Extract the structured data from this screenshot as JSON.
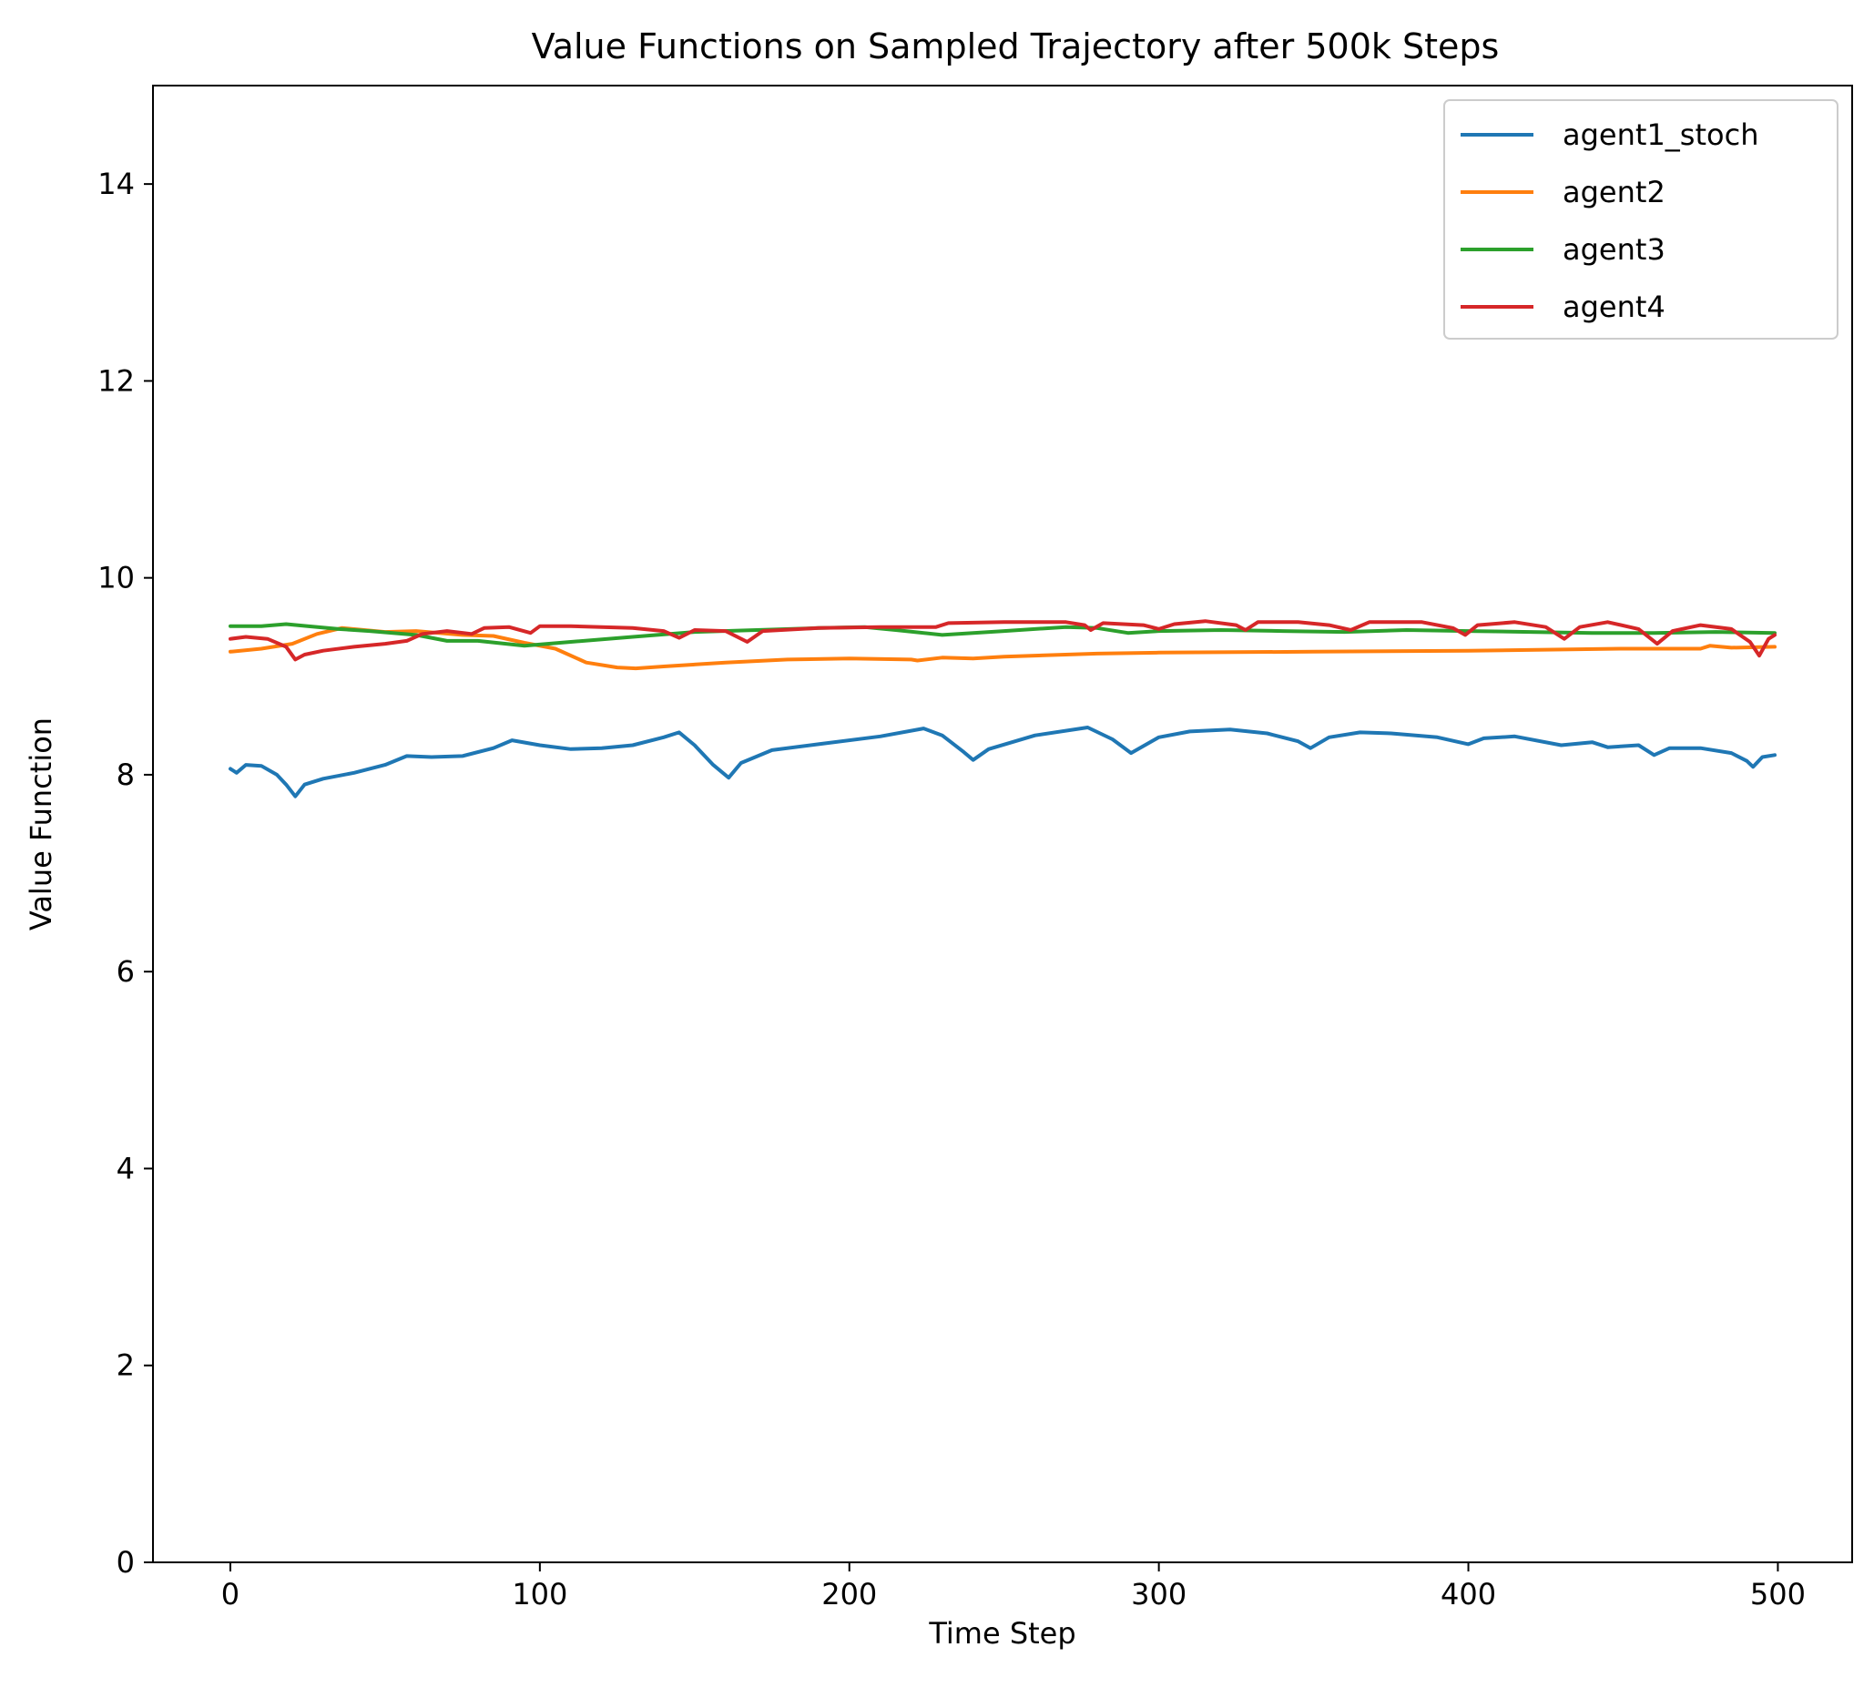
{
  "chart_data": {
    "type": "line",
    "title": "Value Functions on Sampled Trajectory after 500k Steps",
    "xlabel": "Time Step",
    "ylabel": "Value Function",
    "xlim": [
      -25,
      524
    ],
    "ylim": [
      0,
      15
    ],
    "xticks": [
      0,
      100,
      200,
      300,
      400,
      500
    ],
    "yticks": [
      0,
      2,
      4,
      6,
      8,
      10,
      12,
      14
    ],
    "xtick_labels": [
      "0",
      "100",
      "200",
      "300",
      "400",
      "500"
    ],
    "ytick_labels": [
      "0",
      "2",
      "4",
      "6",
      "8",
      "10",
      "12",
      "14"
    ],
    "grid": false,
    "legend_position": "top-right",
    "series": [
      {
        "name": "agent1_stoch",
        "color": "#1f77b4",
        "points": [
          [
            0,
            8.06
          ],
          [
            2,
            8.02
          ],
          [
            5,
            8.1
          ],
          [
            10,
            8.09
          ],
          [
            15,
            8.0
          ],
          [
            18,
            7.9
          ],
          [
            21,
            7.78
          ],
          [
            24,
            7.9
          ],
          [
            30,
            7.96
          ],
          [
            40,
            8.02
          ],
          [
            50,
            8.1
          ],
          [
            57,
            8.19
          ],
          [
            65,
            8.18
          ],
          [
            75,
            8.19
          ],
          [
            85,
            8.27
          ],
          [
            91,
            8.35
          ],
          [
            100,
            8.3
          ],
          [
            110,
            8.26
          ],
          [
            120,
            8.27
          ],
          [
            130,
            8.3
          ],
          [
            140,
            8.38
          ],
          [
            145,
            8.43
          ],
          [
            150,
            8.3
          ],
          [
            156,
            8.1
          ],
          [
            161,
            7.97
          ],
          [
            165,
            8.12
          ],
          [
            175,
            8.25
          ],
          [
            190,
            8.31
          ],
          [
            210,
            8.39
          ],
          [
            224,
            8.47
          ],
          [
            230,
            8.4
          ],
          [
            237,
            8.23
          ],
          [
            240,
            8.15
          ],
          [
            245,
            8.26
          ],
          [
            260,
            8.4
          ],
          [
            277,
            8.48
          ],
          [
            285,
            8.36
          ],
          [
            291,
            8.22
          ],
          [
            300,
            8.38
          ],
          [
            310,
            8.44
          ],
          [
            323,
            8.46
          ],
          [
            335,
            8.42
          ],
          [
            345,
            8.34
          ],
          [
            349,
            8.27
          ],
          [
            355,
            8.38
          ],
          [
            365,
            8.43
          ],
          [
            375,
            8.42
          ],
          [
            390,
            8.38
          ],
          [
            400,
            8.31
          ],
          [
            405,
            8.37
          ],
          [
            415,
            8.39
          ],
          [
            430,
            8.3
          ],
          [
            440,
            8.33
          ],
          [
            445,
            8.28
          ],
          [
            455,
            8.3
          ],
          [
            460,
            8.2
          ],
          [
            465,
            8.27
          ],
          [
            475,
            8.27
          ],
          [
            485,
            8.22
          ],
          [
            490,
            8.14
          ],
          [
            492,
            8.08
          ],
          [
            495,
            8.18
          ],
          [
            499,
            8.2
          ]
        ]
      },
      {
        "name": "agent2",
        "color": "#ff7f0e",
        "points": [
          [
            0,
            9.25
          ],
          [
            10,
            9.28
          ],
          [
            20,
            9.33
          ],
          [
            28,
            9.43
          ],
          [
            36,
            9.49
          ],
          [
            50,
            9.45
          ],
          [
            60,
            9.46
          ],
          [
            75,
            9.42
          ],
          [
            85,
            9.41
          ],
          [
            95,
            9.34
          ],
          [
            105,
            9.28
          ],
          [
            115,
            9.14
          ],
          [
            125,
            9.09
          ],
          [
            131,
            9.08
          ],
          [
            140,
            9.1
          ],
          [
            160,
            9.14
          ],
          [
            180,
            9.17
          ],
          [
            200,
            9.18
          ],
          [
            220,
            9.17
          ],
          [
            222,
            9.16
          ],
          [
            230,
            9.19
          ],
          [
            240,
            9.18
          ],
          [
            250,
            9.2
          ],
          [
            260,
            9.21
          ],
          [
            280,
            9.23
          ],
          [
            300,
            9.24
          ],
          [
            350,
            9.25
          ],
          [
            400,
            9.26
          ],
          [
            450,
            9.28
          ],
          [
            475,
            9.28
          ],
          [
            478,
            9.31
          ],
          [
            485,
            9.29
          ],
          [
            499,
            9.3
          ]
        ]
      },
      {
        "name": "agent3",
        "color": "#2ca02c",
        "points": [
          [
            0,
            9.51
          ],
          [
            10,
            9.51
          ],
          [
            18,
            9.53
          ],
          [
            25,
            9.51
          ],
          [
            35,
            9.48
          ],
          [
            45,
            9.46
          ],
          [
            60,
            9.42
          ],
          [
            70,
            9.36
          ],
          [
            80,
            9.36
          ],
          [
            95,
            9.31
          ],
          [
            110,
            9.35
          ],
          [
            130,
            9.4
          ],
          [
            150,
            9.45
          ],
          [
            170,
            9.47
          ],
          [
            190,
            9.49
          ],
          [
            205,
            9.5
          ],
          [
            215,
            9.47
          ],
          [
            230,
            9.42
          ],
          [
            250,
            9.46
          ],
          [
            270,
            9.5
          ],
          [
            280,
            9.49
          ],
          [
            290,
            9.44
          ],
          [
            300,
            9.46
          ],
          [
            320,
            9.47
          ],
          [
            340,
            9.46
          ],
          [
            360,
            9.45
          ],
          [
            380,
            9.47
          ],
          [
            400,
            9.46
          ],
          [
            420,
            9.45
          ],
          [
            440,
            9.44
          ],
          [
            460,
            9.44
          ],
          [
            480,
            9.45
          ],
          [
            499,
            9.44
          ]
        ]
      },
      {
        "name": "agent4",
        "color": "#d62728",
        "points": [
          [
            0,
            9.38
          ],
          [
            5,
            9.4
          ],
          [
            12,
            9.38
          ],
          [
            18,
            9.3
          ],
          [
            21,
            9.17
          ],
          [
            24,
            9.22
          ],
          [
            30,
            9.26
          ],
          [
            40,
            9.3
          ],
          [
            50,
            9.33
          ],
          [
            57,
            9.36
          ],
          [
            62,
            9.43
          ],
          [
            70,
            9.46
          ],
          [
            78,
            9.43
          ],
          [
            82,
            9.49
          ],
          [
            90,
            9.5
          ],
          [
            97,
            9.44
          ],
          [
            100,
            9.51
          ],
          [
            110,
            9.51
          ],
          [
            130,
            9.49
          ],
          [
            140,
            9.46
          ],
          [
            145,
            9.39
          ],
          [
            150,
            9.47
          ],
          [
            160,
            9.46
          ],
          [
            167,
            9.35
          ],
          [
            172,
            9.46
          ],
          [
            190,
            9.49
          ],
          [
            210,
            9.5
          ],
          [
            228,
            9.5
          ],
          [
            232,
            9.54
          ],
          [
            250,
            9.55
          ],
          [
            270,
            9.55
          ],
          [
            276,
            9.52
          ],
          [
            278,
            9.47
          ],
          [
            282,
            9.54
          ],
          [
            295,
            9.52
          ],
          [
            300,
            9.48
          ],
          [
            305,
            9.53
          ],
          [
            315,
            9.56
          ],
          [
            325,
            9.52
          ],
          [
            328,
            9.47
          ],
          [
            332,
            9.55
          ],
          [
            345,
            9.55
          ],
          [
            355,
            9.52
          ],
          [
            362,
            9.47
          ],
          [
            368,
            9.55
          ],
          [
            385,
            9.55
          ],
          [
            395,
            9.49
          ],
          [
            399,
            9.42
          ],
          [
            403,
            9.52
          ],
          [
            415,
            9.55
          ],
          [
            425,
            9.5
          ],
          [
            431,
            9.38
          ],
          [
            436,
            9.5
          ],
          [
            445,
            9.55
          ],
          [
            455,
            9.48
          ],
          [
            461,
            9.33
          ],
          [
            466,
            9.46
          ],
          [
            475,
            9.52
          ],
          [
            485,
            9.48
          ],
          [
            491,
            9.35
          ],
          [
            494,
            9.21
          ],
          [
            497,
            9.38
          ],
          [
            499,
            9.42
          ]
        ]
      }
    ]
  }
}
